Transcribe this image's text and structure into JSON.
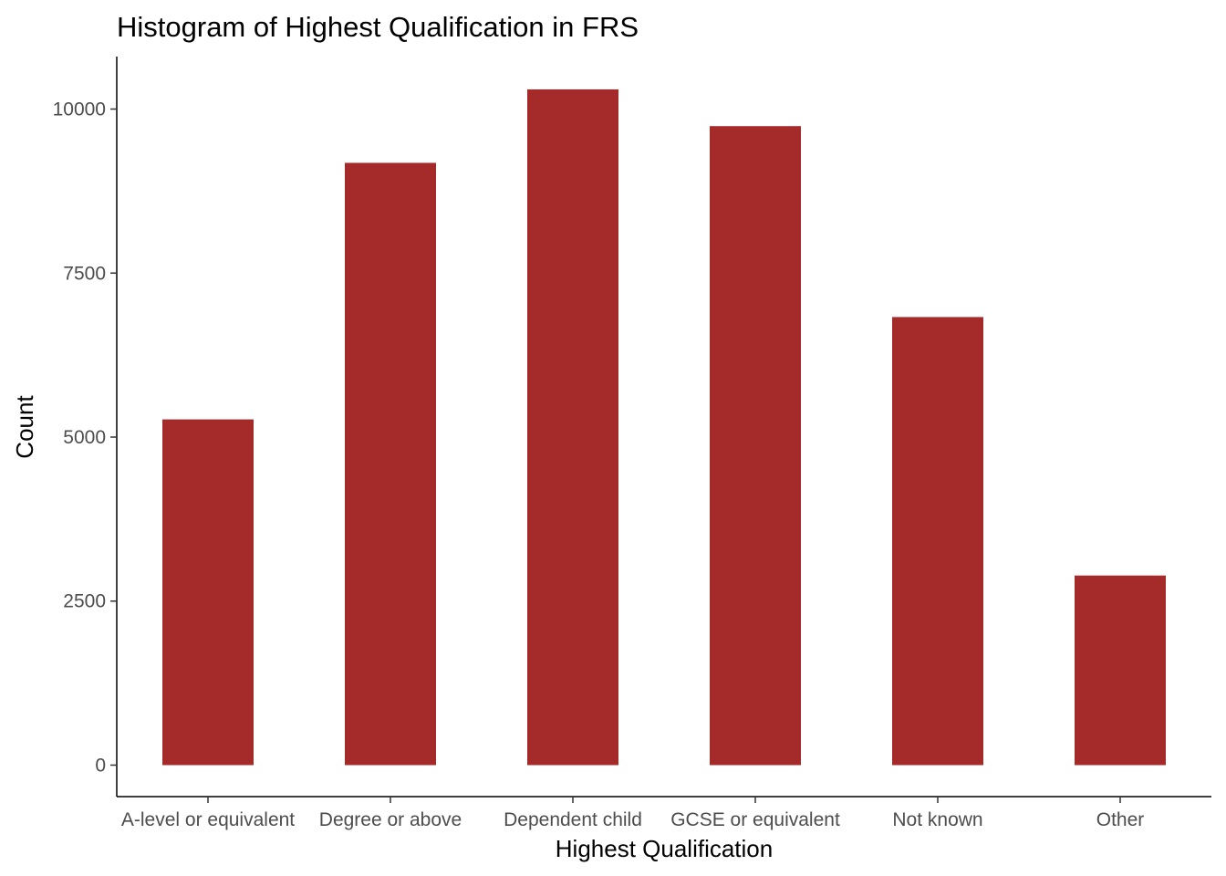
{
  "chart_data": {
    "type": "bar",
    "title": "Histogram of Highest Qualification in FRS",
    "xlabel": "Highest Qualification",
    "ylabel": "Count",
    "categories": [
      "A-level or equivalent",
      "Degree or above",
      "Dependent child",
      "GCSE or equivalent",
      "Not known",
      "Other"
    ],
    "values": [
      5270,
      9180,
      10300,
      9740,
      6830,
      2890
    ],
    "ylim": [
      -480,
      10800
    ],
    "yticks": [
      0,
      2500,
      5000,
      7500,
      10000
    ],
    "ytick_labels": [
      "0",
      "2500",
      "5000",
      "7500",
      "10000"
    ],
    "bar_color": "#a52a2a",
    "grid": false,
    "legend": "none"
  }
}
